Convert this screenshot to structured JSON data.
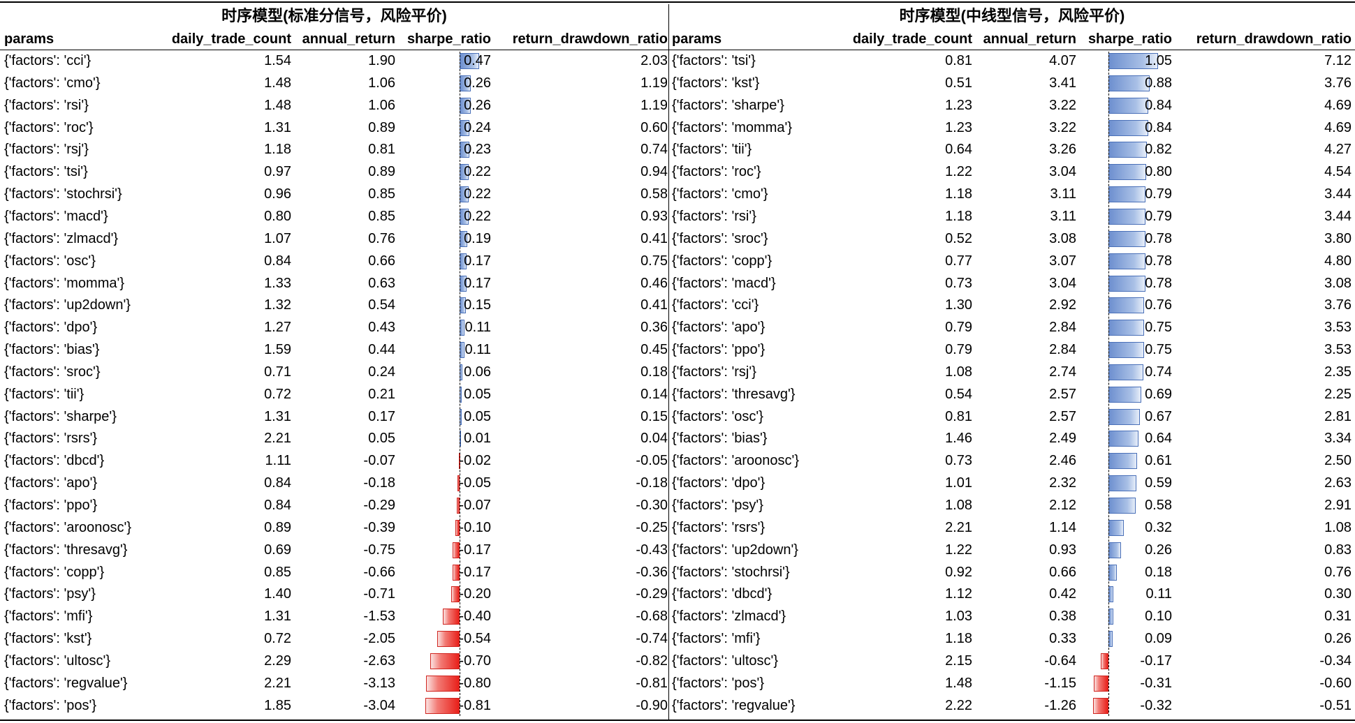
{
  "left": {
    "title": "时序模型(标准分信号，风险平价)",
    "columns": [
      "params",
      "daily_trade_count",
      "annual_return",
      "sharpe_ratio",
      "return_drawdown_ratio"
    ],
    "rows": [
      [
        "{'factors': 'cci'}",
        "1.54",
        "1.90",
        "0.47",
        "2.03"
      ],
      [
        "{'factors': 'cmo'}",
        "1.48",
        "1.06",
        "0.26",
        "1.19"
      ],
      [
        "{'factors': 'rsi'}",
        "1.48",
        "1.06",
        "0.26",
        "1.19"
      ],
      [
        "{'factors': 'roc'}",
        "1.31",
        "0.89",
        "0.24",
        "0.60"
      ],
      [
        "{'factors': 'rsj'}",
        "1.18",
        "0.81",
        "0.23",
        "0.74"
      ],
      [
        "{'factors': 'tsi'}",
        "0.97",
        "0.89",
        "0.22",
        "0.94"
      ],
      [
        "{'factors': 'stochrsi'}",
        "0.96",
        "0.85",
        "0.22",
        "0.58"
      ],
      [
        "{'factors': 'macd'}",
        "0.80",
        "0.85",
        "0.22",
        "0.93"
      ],
      [
        "{'factors': 'zlmacd'}",
        "1.07",
        "0.76",
        "0.19",
        "0.41"
      ],
      [
        "{'factors': 'osc'}",
        "0.84",
        "0.66",
        "0.17",
        "0.75"
      ],
      [
        "{'factors': 'momma'}",
        "1.33",
        "0.63",
        "0.17",
        "0.46"
      ],
      [
        "{'factors': 'up2down'}",
        "1.32",
        "0.54",
        "0.15",
        "0.41"
      ],
      [
        "{'factors': 'dpo'}",
        "1.27",
        "0.43",
        "0.11",
        "0.36"
      ],
      [
        "{'factors': 'bias'}",
        "1.59",
        "0.44",
        "0.11",
        "0.45"
      ],
      [
        "{'factors': 'sroc'}",
        "0.71",
        "0.24",
        "0.06",
        "0.18"
      ],
      [
        "{'factors': 'tii'}",
        "0.72",
        "0.21",
        "0.05",
        "0.14"
      ],
      [
        "{'factors': 'sharpe'}",
        "1.31",
        "0.17",
        "0.05",
        "0.15"
      ],
      [
        "{'factors': 'rsrs'}",
        "2.21",
        "0.05",
        "0.01",
        "0.04"
      ],
      [
        "{'factors': 'dbcd'}",
        "1.11",
        "-0.07",
        "-0.02",
        "-0.05"
      ],
      [
        "{'factors': 'apo'}",
        "0.84",
        "-0.18",
        "-0.05",
        "-0.18"
      ],
      [
        "{'factors': 'ppo'}",
        "0.84",
        "-0.29",
        "-0.07",
        "-0.30"
      ],
      [
        "{'factors': 'aroonosc'}",
        "0.89",
        "-0.39",
        "-0.10",
        "-0.25"
      ],
      [
        "{'factors': 'thresavg'}",
        "0.69",
        "-0.75",
        "-0.17",
        "-0.43"
      ],
      [
        "{'factors': 'copp'}",
        "0.85",
        "-0.66",
        "-0.17",
        "-0.36"
      ],
      [
        "{'factors': 'psy'}",
        "1.40",
        "-0.71",
        "-0.20",
        "-0.29"
      ],
      [
        "{'factors': 'mfi'}",
        "1.31",
        "-1.53",
        "-0.40",
        "-0.68"
      ],
      [
        "{'factors': 'kst'}",
        "0.72",
        "-2.05",
        "-0.54",
        "-0.74"
      ],
      [
        "{'factors': 'ultosc'}",
        "2.29",
        "-2.63",
        "-0.70",
        "-0.82"
      ],
      [
        "{'factors': 'regvalue'}",
        "2.21",
        "-3.13",
        "-0.80",
        "-0.81"
      ],
      [
        "{'factors': 'pos'}",
        "1.85",
        "-3.04",
        "-0.81",
        "-0.90"
      ]
    ]
  },
  "right": {
    "title": "时序模型(中线型信号，风险平价)",
    "columns": [
      "params",
      "daily_trade_count",
      "annual_return",
      "sharpe_ratio",
      "return_drawdown_ratio"
    ],
    "rows": [
      [
        "{'factors': 'tsi'}",
        "0.81",
        "4.07",
        "1.05",
        "7.12"
      ],
      [
        "{'factors': 'kst'}",
        "0.51",
        "3.41",
        "0.88",
        "3.76"
      ],
      [
        "{'factors': 'sharpe'}",
        "1.23",
        "3.22",
        "0.84",
        "4.69"
      ],
      [
        "{'factors': 'momma'}",
        "1.23",
        "3.22",
        "0.84",
        "4.69"
      ],
      [
        "{'factors': 'tii'}",
        "0.64",
        "3.26",
        "0.82",
        "4.27"
      ],
      [
        "{'factors': 'roc'}",
        "1.22",
        "3.04",
        "0.80",
        "4.54"
      ],
      [
        "{'factors': 'cmo'}",
        "1.18",
        "3.11",
        "0.79",
        "3.44"
      ],
      [
        "{'factors': 'rsi'}",
        "1.18",
        "3.11",
        "0.79",
        "3.44"
      ],
      [
        "{'factors': 'sroc'}",
        "0.52",
        "3.08",
        "0.78",
        "3.80"
      ],
      [
        "{'factors': 'copp'}",
        "0.77",
        "3.07",
        "0.78",
        "4.80"
      ],
      [
        "{'factors': 'macd'}",
        "0.73",
        "3.04",
        "0.78",
        "3.08"
      ],
      [
        "{'factors': 'cci'}",
        "1.30",
        "2.92",
        "0.76",
        "3.76"
      ],
      [
        "{'factors': 'apo'}",
        "0.79",
        "2.84",
        "0.75",
        "3.53"
      ],
      [
        "{'factors': 'ppo'}",
        "0.79",
        "2.84",
        "0.75",
        "3.53"
      ],
      [
        "{'factors': 'rsj'}",
        "1.08",
        "2.74",
        "0.74",
        "2.35"
      ],
      [
        "{'factors': 'thresavg'}",
        "0.54",
        "2.57",
        "0.69",
        "2.25"
      ],
      [
        "{'factors': 'osc'}",
        "0.81",
        "2.57",
        "0.67",
        "2.81"
      ],
      [
        "{'factors': 'bias'}",
        "1.46",
        "2.49",
        "0.64",
        "3.34"
      ],
      [
        "{'factors': 'aroonosc'}",
        "0.73",
        "2.46",
        "0.61",
        "2.50"
      ],
      [
        "{'factors': 'dpo'}",
        "1.01",
        "2.32",
        "0.59",
        "2.63"
      ],
      [
        "{'factors': 'psy'}",
        "1.08",
        "2.12",
        "0.58",
        "2.91"
      ],
      [
        "{'factors': 'rsrs'}",
        "2.21",
        "1.14",
        "0.32",
        "1.08"
      ],
      [
        "{'factors': 'up2down'}",
        "1.22",
        "0.93",
        "0.26",
        "0.83"
      ],
      [
        "{'factors': 'stochrsi'}",
        "0.92",
        "0.66",
        "0.18",
        "0.76"
      ],
      [
        "{'factors': 'dbcd'}",
        "1.12",
        "0.42",
        "0.11",
        "0.30"
      ],
      [
        "{'factors': 'zlmacd'}",
        "1.03",
        "0.38",
        "0.10",
        "0.31"
      ],
      [
        "{'factors': 'mfi'}",
        "1.18",
        "0.33",
        "0.09",
        "0.26"
      ],
      [
        "{'factors': 'ultosc'}",
        "2.15",
        "-0.64",
        "-0.17",
        "-0.34"
      ],
      [
        "{'factors': 'pos'}",
        "1.48",
        "-1.15",
        "-0.31",
        "-0.60"
      ],
      [
        "{'factors': 'regvalue'}",
        "2.22",
        "-1.26",
        "-0.32",
        "-0.51"
      ]
    ]
  },
  "colors": {
    "positive_bar": "#6d8fcf",
    "negative_bar": "#e8201a"
  }
}
